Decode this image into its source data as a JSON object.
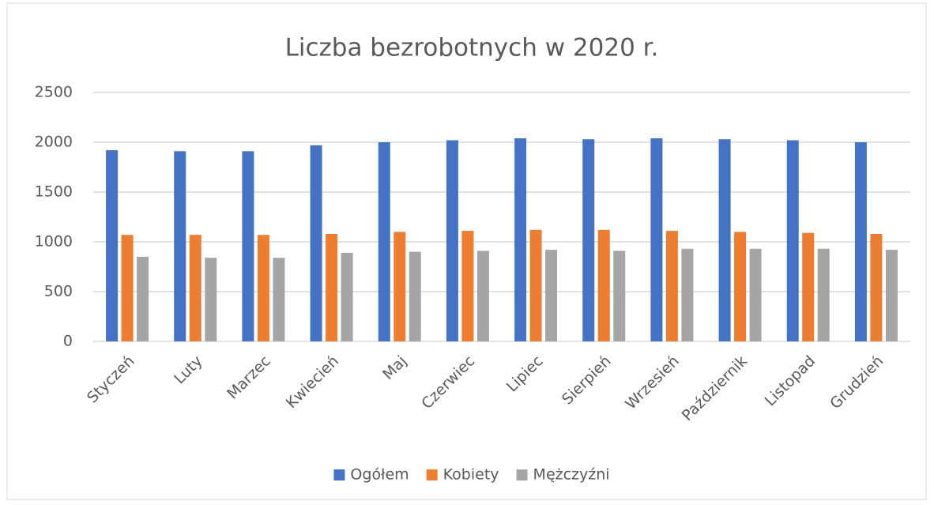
{
  "chart_data": {
    "type": "bar",
    "title": "Liczba bezrobotnych w 2020 r.",
    "categories": [
      "Styczeń",
      "Luty",
      "Marzec",
      "Kwiecień",
      "Maj",
      "Czerwiec",
      "Lipiec",
      "Sierpień",
      "Wrzesień",
      "Październik",
      "Listopad",
      "Grudzień"
    ],
    "series": [
      {
        "name": "Ogółem",
        "color": "#4472c4",
        "values": [
          1920,
          1910,
          1910,
          1970,
          2000,
          2020,
          2040,
          2030,
          2040,
          2030,
          2020,
          2000
        ]
      },
      {
        "name": "Kobiety",
        "color": "#ed7d31",
        "values": [
          1070,
          1070,
          1070,
          1080,
          1100,
          1110,
          1120,
          1120,
          1110,
          1100,
          1090,
          1080
        ]
      },
      {
        "name": "Mężczyźni",
        "color": "#a5a5a5",
        "values": [
          850,
          840,
          840,
          890,
          900,
          910,
          920,
          910,
          930,
          930,
          930,
          920
        ]
      }
    ],
    "ylim": [
      0,
      2500
    ],
    "yticks": [
      0,
      500,
      1000,
      1500,
      2000,
      2500
    ],
    "grid": true,
    "legend": "bottom"
  }
}
